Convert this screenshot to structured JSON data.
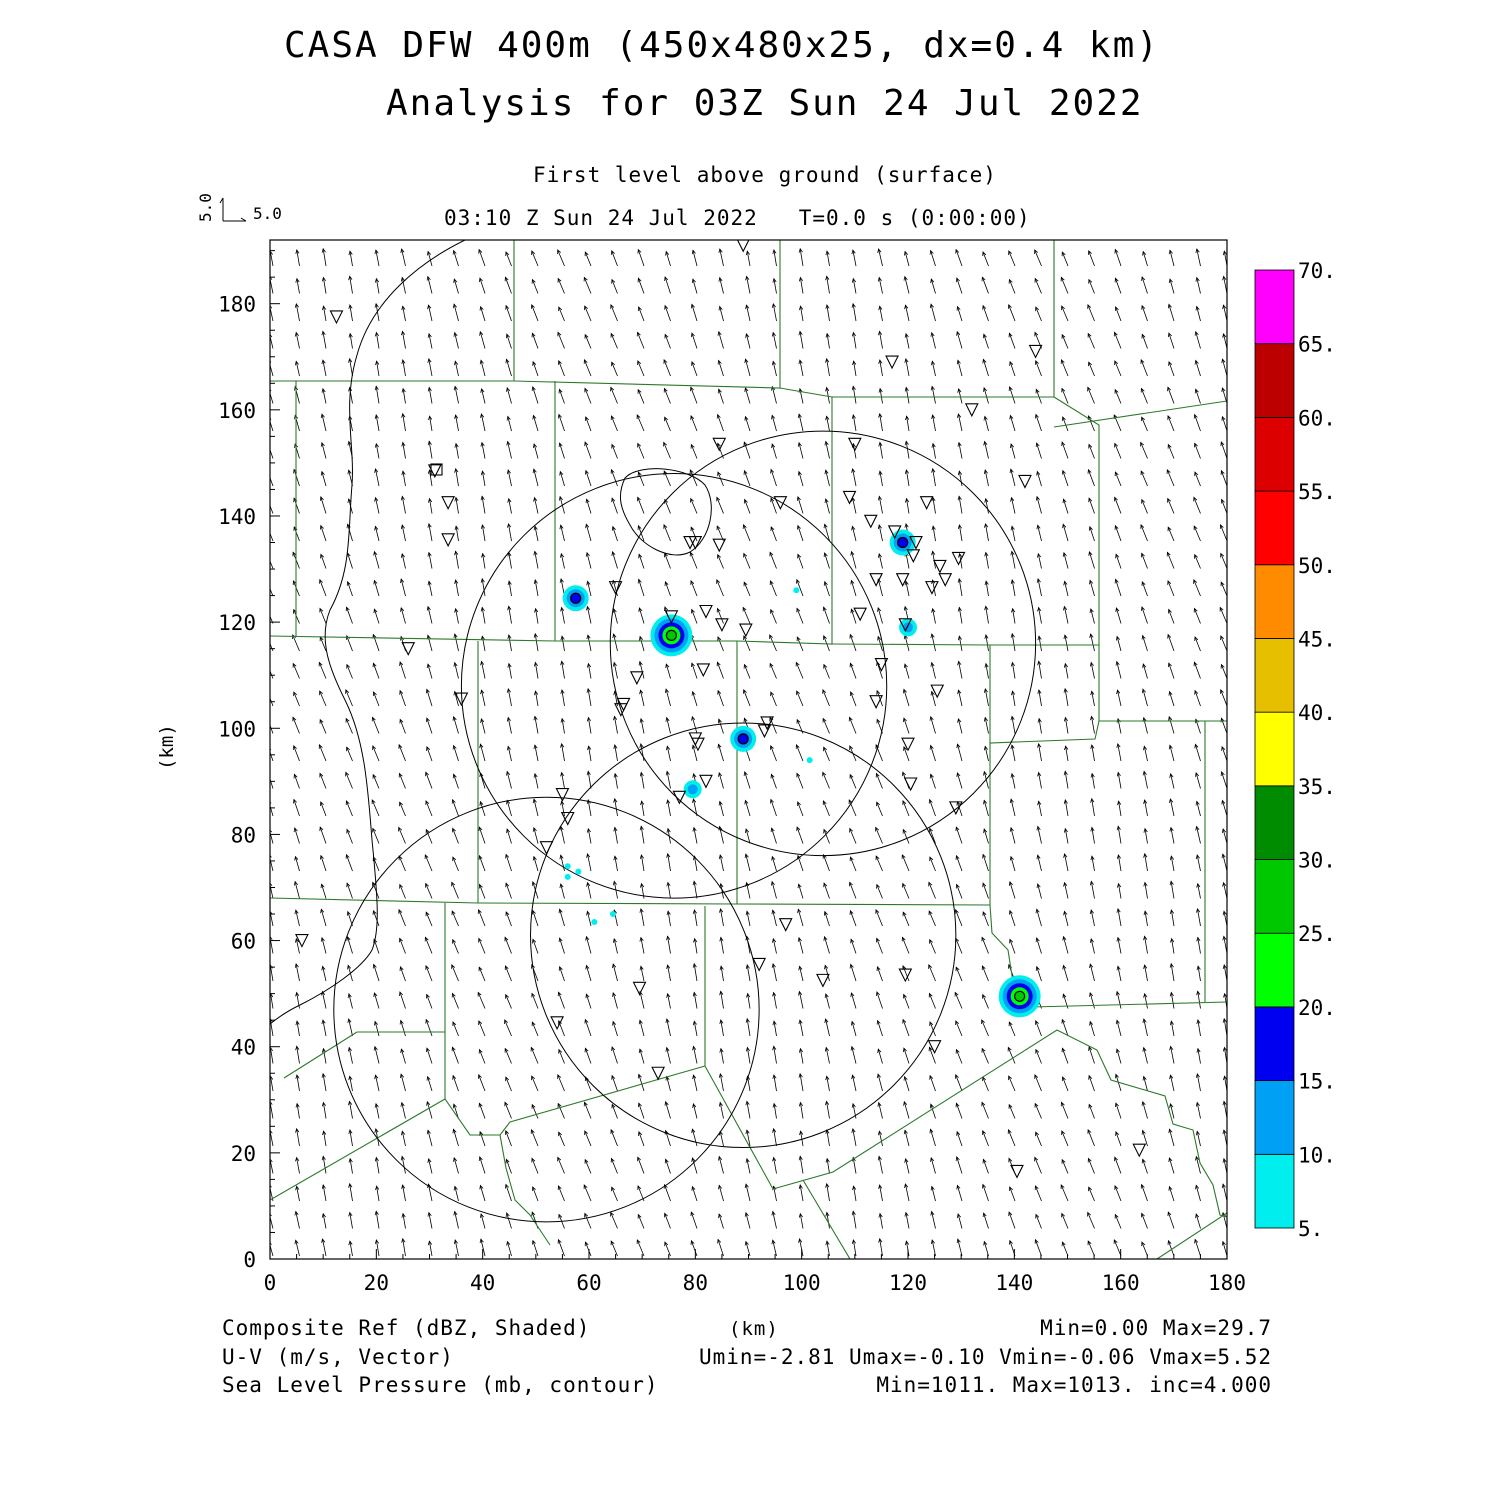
{
  "header": {
    "title_line1": "CASA DFW 400m (450x480x25, dx=0.4 km)",
    "title_line2": "Analysis for 03Z Sun 24 Jul 2022",
    "level_label": "First level above ground (surface)",
    "time_label": "03:10 Z Sun 24 Jul 2022   T=0.0 s (0:00:00)",
    "vector_key_x": "5.0",
    "vector_key_y": "5.0"
  },
  "footer": {
    "field1_label": "Composite Ref (dBZ, Shaded)",
    "field1_stats": "Min=0.00 Max=29.7",
    "field2_label": "U-V (m/s, Vector)",
    "field2_stats": "Umin=-2.81 Umax=-0.10 Vmin=-0.06 Vmax=5.52",
    "field3_label": "Sea Level Pressure (mb, contour)",
    "field3_stats": "Min=1011. Max=1013. inc=4.000",
    "xunit": "(km)"
  },
  "chart_data": {
    "type": "heatmap",
    "title": "CASA DFW 400m (450x480x25, dx=0.4 km)",
    "subtitle": "Analysis for 03Z Sun 24 Jul 2022",
    "xlabel": "(km)",
    "ylabel": "(km)",
    "xlim": [
      0,
      180
    ],
    "ylim": [
      0,
      192
    ],
    "xticks": [
      "0",
      "20",
      "40",
      "60",
      "80",
      "100",
      "120",
      "140",
      "160",
      "180"
    ],
    "yticks": [
      "0",
      "20",
      "40",
      "60",
      "80",
      "100",
      "120",
      "140",
      "160",
      "180"
    ],
    "colorbar": {
      "levels": [
        "5.",
        "10.",
        "15.",
        "20.",
        "25.",
        "30.",
        "35.",
        "40.",
        "45.",
        "50.",
        "55.",
        "60.",
        "65.",
        "70."
      ],
      "colors": [
        "#00eeee",
        "#00a0f5",
        "#0000f0",
        "#00ff00",
        "#00c800",
        "#008c00",
        "#ffff00",
        "#e5bf00",
        "#ff8c00",
        "#ff0000",
        "#dd0000",
        "#bc0000",
        "#ff00ff"
      ]
    },
    "radar_circles": [
      {
        "cx": 52,
        "cy": 47,
        "r": 40
      },
      {
        "cx": 89,
        "cy": 61,
        "r": 40
      },
      {
        "cx": 76,
        "cy": 108,
        "r": 40
      },
      {
        "cx": 104,
        "cy": 116,
        "r": 40
      }
    ],
    "echoes": [
      {
        "x": 57.5,
        "y": 124.5,
        "dbz": 18
      },
      {
        "x": 75.5,
        "y": 117.5,
        "dbz": 27
      },
      {
        "x": 119.0,
        "y": 135.0,
        "dbz": 18
      },
      {
        "x": 120.0,
        "y": 119.0,
        "dbz": 14
      },
      {
        "x": 89.0,
        "y": 98.0,
        "dbz": 16
      },
      {
        "x": 141.0,
        "y": 49.5,
        "dbz": 29.7
      },
      {
        "x": 79.5,
        "y": 88.5,
        "dbz": 10
      },
      {
        "x": 99.0,
        "y": 126.0,
        "dbz": 8
      },
      {
        "x": 101.5,
        "y": 94.0,
        "dbz": 7
      },
      {
        "x": 56.0,
        "y": 74.0,
        "dbz": 8
      },
      {
        "x": 58.0,
        "y": 73.0,
        "dbz": 7
      },
      {
        "x": 56.0,
        "y": 72.0,
        "dbz": 7
      },
      {
        "x": 61.0,
        "y": 63.5,
        "dbz": 7
      },
      {
        "x": 64.5,
        "y": 65.0,
        "dbz": 6
      }
    ],
    "stations": [
      [
        12.5,
        177.5
      ],
      [
        89,
        191
      ],
      [
        117,
        169
      ],
      [
        144,
        171
      ],
      [
        132,
        160
      ],
      [
        31,
        148.5
      ],
      [
        33.5,
        142.5
      ],
      [
        33.5,
        135.5
      ],
      [
        84.5,
        153.5
      ],
      [
        110,
        153.5
      ],
      [
        142,
        146.5
      ],
      [
        96,
        142.5
      ],
      [
        109,
        143.5
      ],
      [
        123.5,
        142.5
      ],
      [
        79,
        135
      ],
      [
        80,
        135
      ],
      [
        84.5,
        134.5
      ],
      [
        113,
        139
      ],
      [
        117.5,
        137
      ],
      [
        121.5,
        135
      ],
      [
        121,
        132.5
      ],
      [
        126,
        130.5
      ],
      [
        129.5,
        132
      ],
      [
        127,
        128
      ],
      [
        124.5,
        126.5
      ],
      [
        114,
        128
      ],
      [
        119,
        128
      ],
      [
        65,
        126.5
      ],
      [
        75.5,
        121
      ],
      [
        82,
        122
      ],
      [
        85,
        119.5
      ],
      [
        89.5,
        118.5
      ],
      [
        111,
        121.5
      ],
      [
        119.5,
        119.5
      ],
      [
        26,
        115
      ],
      [
        81.5,
        111
      ],
      [
        115,
        112
      ],
      [
        69,
        109.5
      ],
      [
        66.5,
        104.5
      ],
      [
        66,
        103.5
      ],
      [
        36,
        105.5
      ],
      [
        114,
        105
      ],
      [
        125.5,
        107
      ],
      [
        93.5,
        101
      ],
      [
        93,
        99.5
      ],
      [
        80,
        98
      ],
      [
        80.5,
        97
      ],
      [
        120,
        97
      ],
      [
        82,
        90
      ],
      [
        77,
        87
      ],
      [
        120.5,
        89.5
      ],
      [
        129,
        85
      ],
      [
        55,
        87.5
      ],
      [
        56,
        83
      ],
      [
        52,
        77.5
      ],
      [
        97,
        63
      ],
      [
        6,
        60
      ],
      [
        92,
        55.5
      ],
      [
        69.5,
        51
      ],
      [
        104,
        52.5
      ],
      [
        119.5,
        53.5
      ],
      [
        54,
        44.5
      ],
      [
        125,
        40
      ],
      [
        73,
        35
      ],
      [
        163.5,
        20.5
      ],
      [
        140.5,
        16.5
      ]
    ],
    "pressure_contours_note": "Sea Level Pressure contours, inc=4.000"
  }
}
